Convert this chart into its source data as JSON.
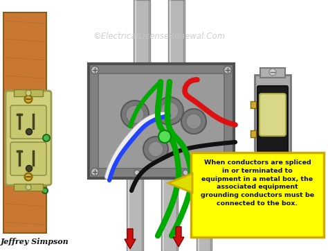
{
  "watermark": "©ElectricalLicenseRenewal.Com",
  "callout_text": "When conductors are spliced\nin or terminated to\nequipment in a metal box, the\nassociated equipment\ngrounding conductors must be\nconnected to the box.",
  "author": "Jeffrey Simpson",
  "bg_color": "#ffffff",
  "wood_color": "#c87832",
  "wood_edge": "#8b5a1a",
  "conduit_color": "#b8b8b8",
  "conduit_edge": "#888888",
  "box_outer_color": "#909090",
  "box_inner_color": "#b0b0b0",
  "callout_bg": "#ffff00",
  "callout_border": "#ccaa00",
  "outlet_color": "#d4d48a",
  "switch_dark": "#333333",
  "switch_plate": "#aaaaaa",
  "toggle_color": "#d4d48a",
  "watermark_color": "#c8c8c8",
  "figsize": [
    4.74,
    3.62
  ],
  "dpi": 100
}
